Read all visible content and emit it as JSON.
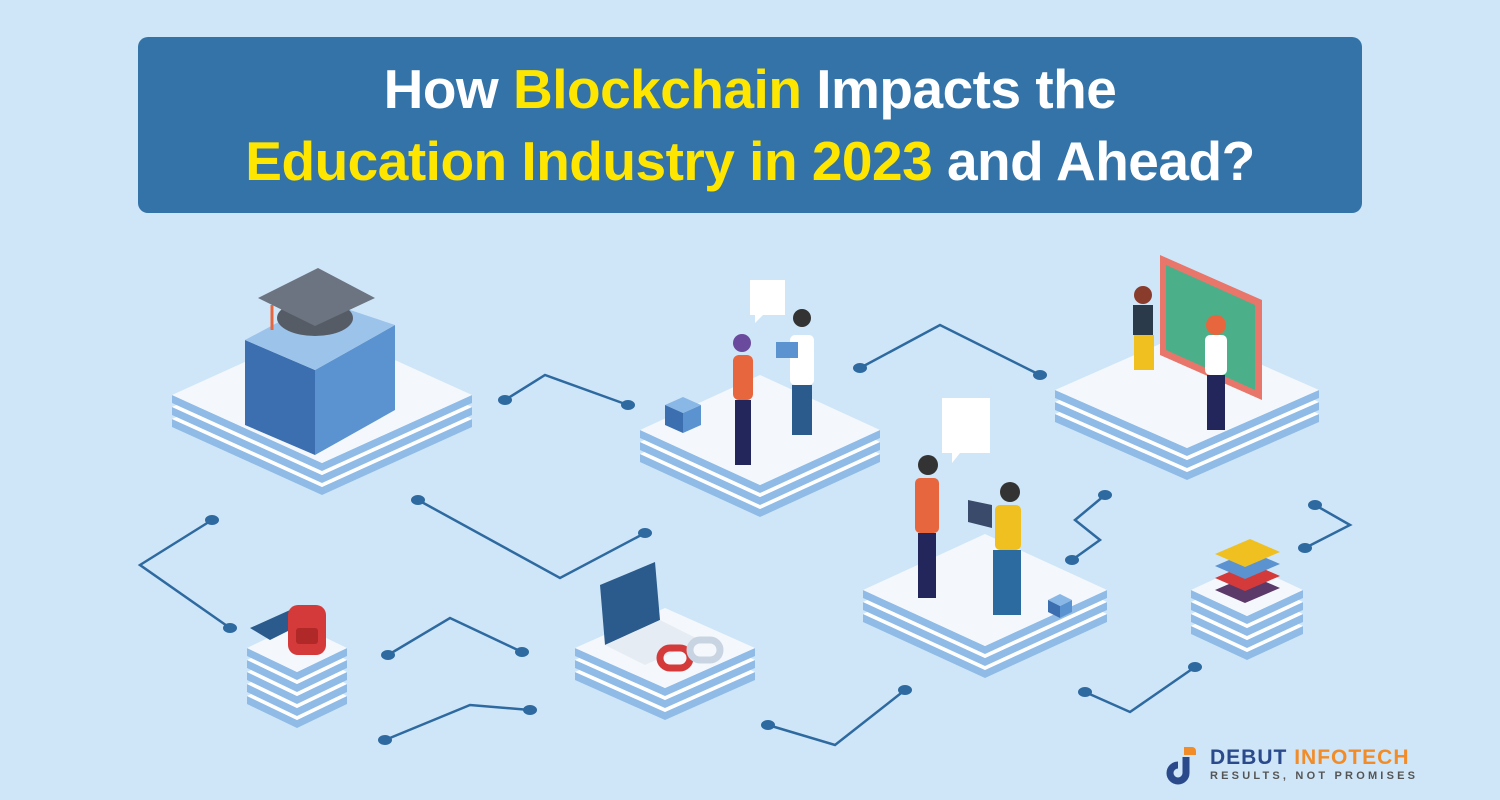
{
  "title": {
    "line1": {
      "w1": "How",
      "w2": "Blockchain",
      "w3": "Impacts the"
    },
    "line2": {
      "w1": "Education Industry in 2023",
      "w2": "and Ahead?"
    }
  },
  "logo": {
    "name_part1": "DEBUT",
    "name_part2": "INFOTECH",
    "tagline": "RESULTS, NOT PROMISES"
  },
  "colors": {
    "background": "#cfe6f8",
    "title_box": "#3373a8",
    "highlight": "#ffe600",
    "logo_blue": "#2a4a8c",
    "logo_orange": "#f28c28",
    "circuit": "#2e6aa0"
  },
  "icons": [
    "graduation-building-icon",
    "students-talking-icon",
    "teacher-blackboard-icon",
    "students-laptop-icon",
    "backpack-books-icon",
    "laptop-chain-icon",
    "book-stack-icon",
    "blockchain-cube-icon"
  ]
}
